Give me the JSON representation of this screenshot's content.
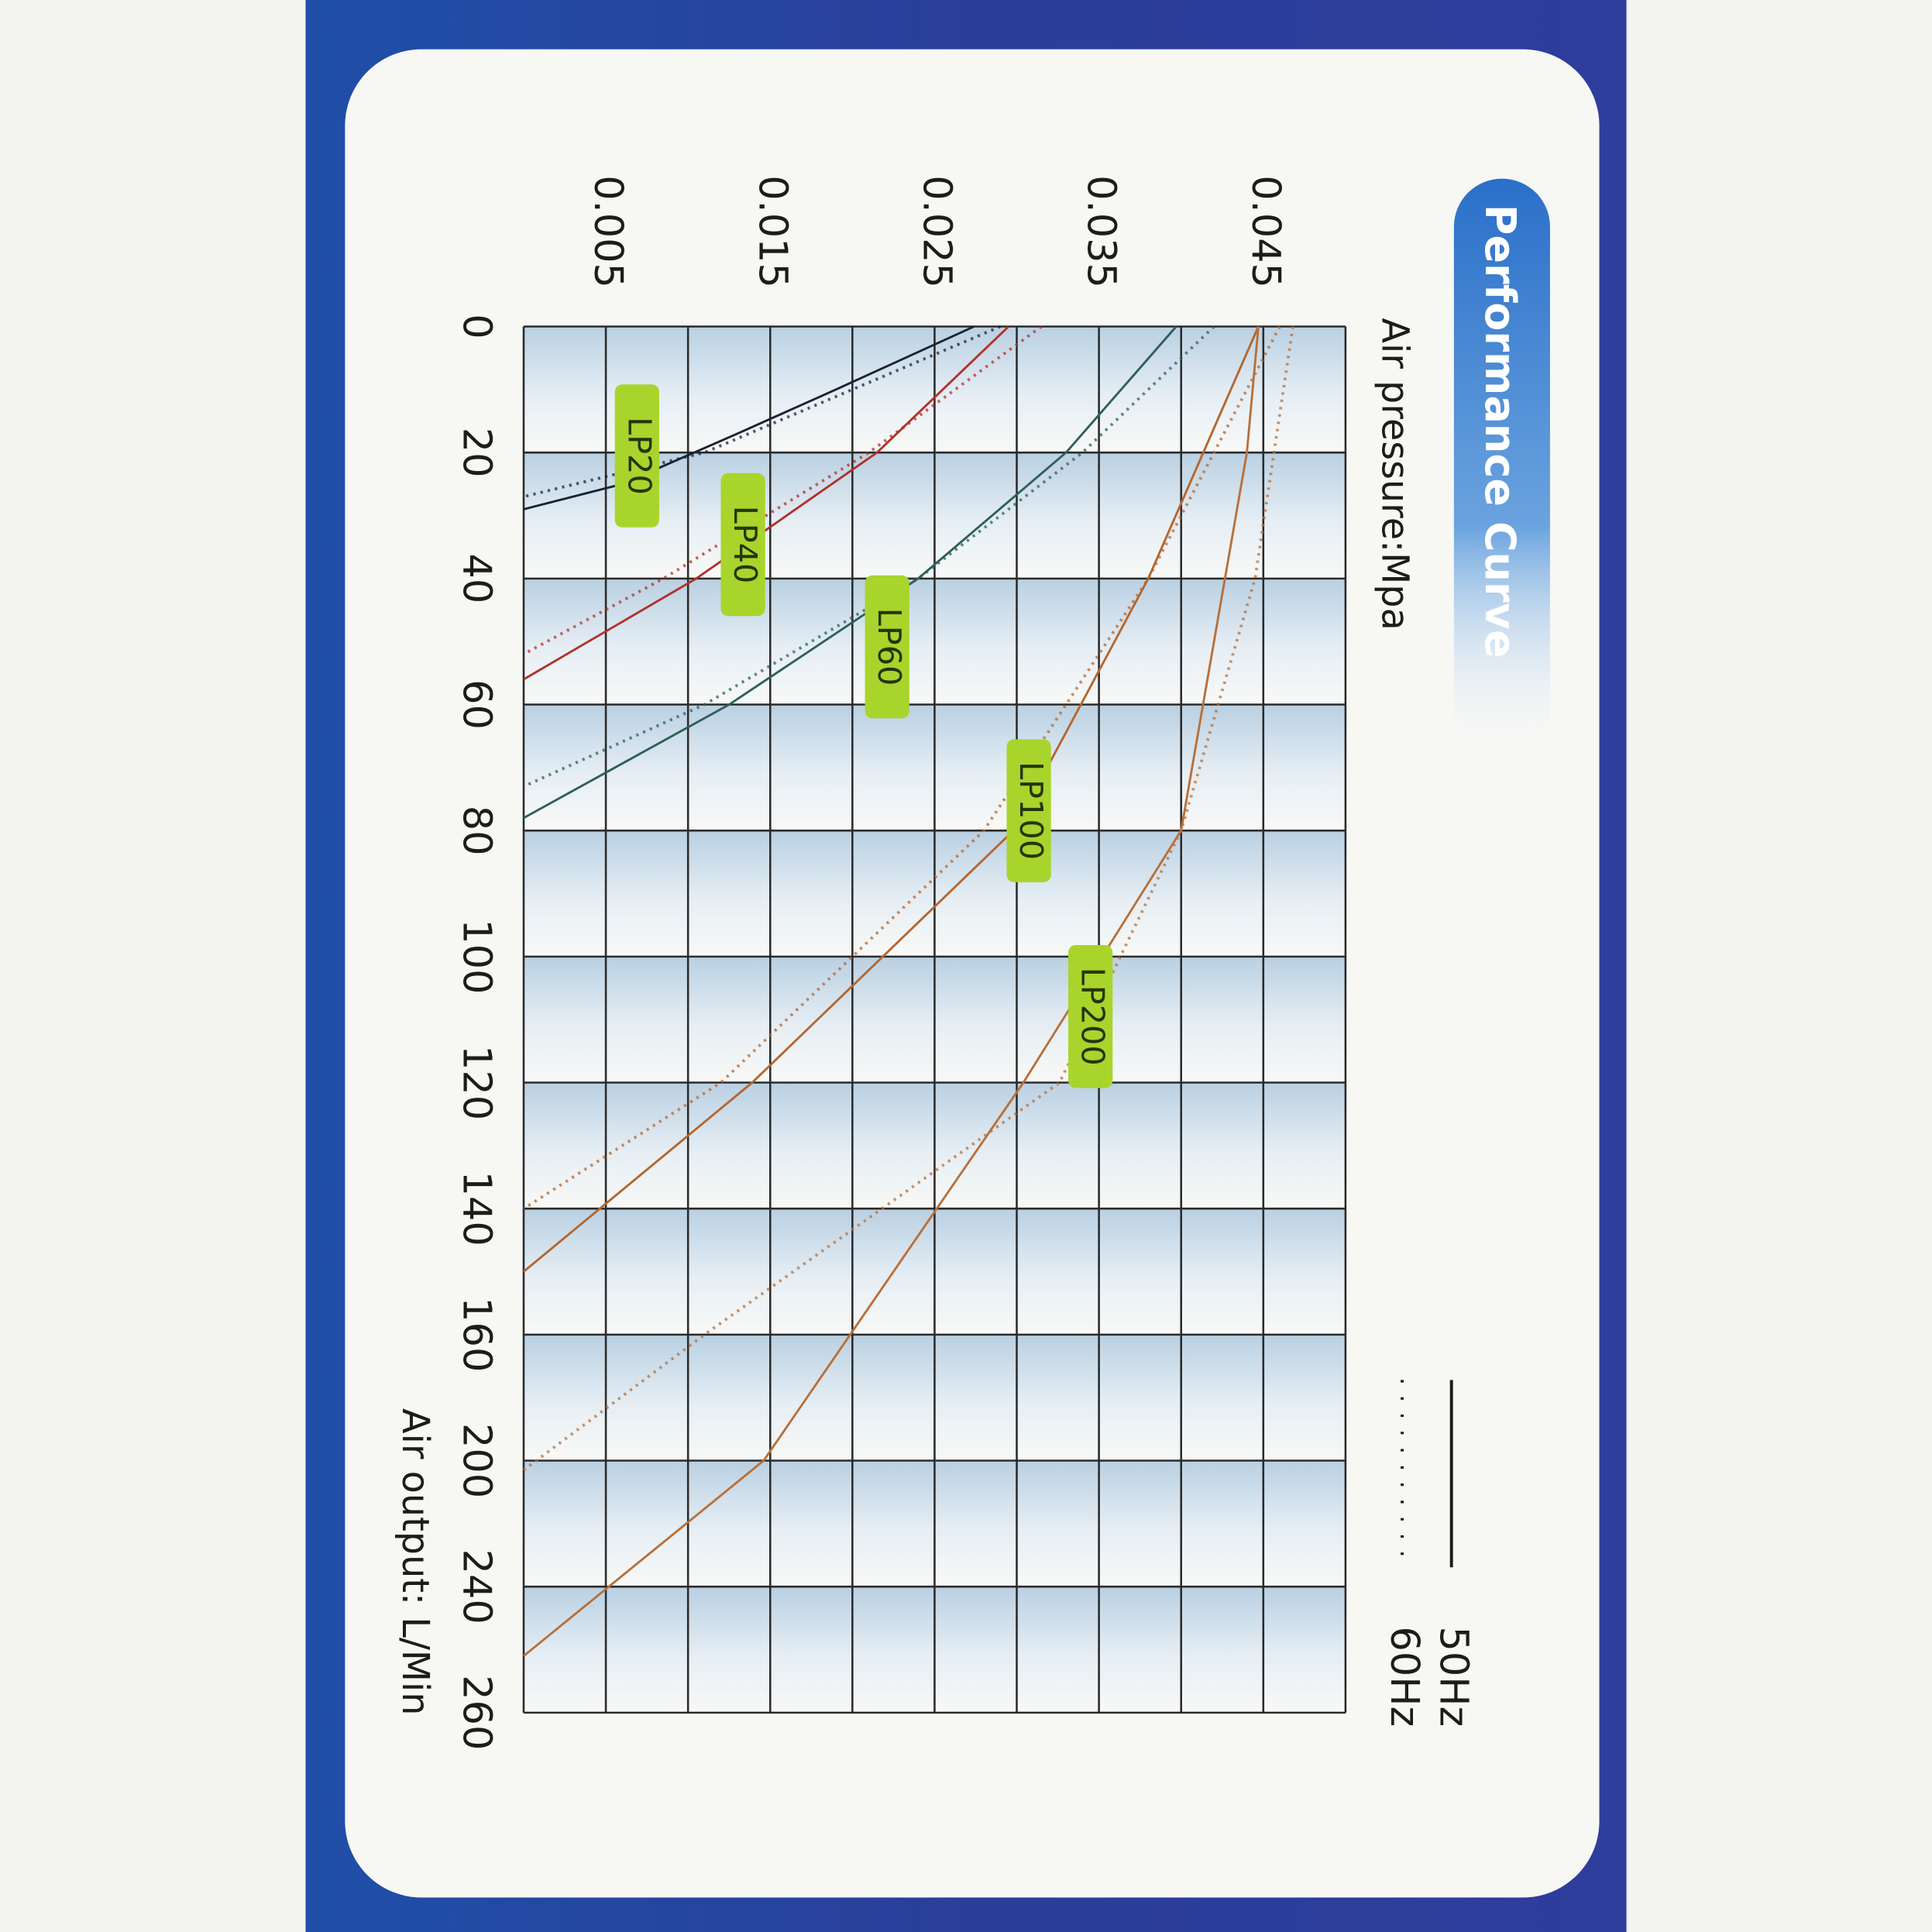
{
  "chart_data": {
    "type": "line",
    "title": "Performance Curve",
    "y_label": "Air pressure:Mpa",
    "x_label": "Air output: L/Min",
    "xlim": [
      0,
      260
    ],
    "xticks": [
      0,
      20,
      40,
      60,
      80,
      100,
      120,
      140,
      160,
      200,
      240,
      260
    ],
    "ylim": [
      0,
      0.05
    ],
    "yticks": [
      0.005,
      0.015,
      0.025,
      0.035,
      0.045
    ],
    "minor_yticks": [
      0,
      0.01,
      0.02,
      0.03,
      0.04,
      0.05
    ],
    "grid": true,
    "legend": [
      {
        "name": "50Hz",
        "dash": "solid"
      },
      {
        "name": "60Hz",
        "dash": "dotted"
      }
    ],
    "series": [
      {
        "name": "LP20",
        "color": "#1b2333",
        "curves": [
          {
            "x": [
              0,
              10,
              17,
              25,
              29
            ],
            "values": [
              0.0274,
              0.019,
              0.013,
              0.006,
              0
            ]
          },
          {
            "x": [
              0,
              10,
              20,
              27
            ],
            "values": [
              0.029,
              0.02,
              0.011,
              0
            ]
          }
        ]
      },
      {
        "name": "LP40",
        "color": "#b0322a",
        "curves": [
          {
            "x": [
              0,
              20,
              40,
              56
            ],
            "values": [
              0.0295,
              0.0215,
              0.0105,
              0
            ]
          },
          {
            "x": [
              0,
              20,
              40,
              52
            ],
            "values": [
              0.0315,
              0.021,
              0.0085,
              0
            ]
          }
        ]
      },
      {
        "name": "LP60",
        "color": "#2f5f5a",
        "curves": [
          {
            "x": [
              0,
              20,
              40,
              60,
              78
            ],
            "values": [
              0.0397,
              0.033,
              0.024,
              0.0125,
              0
            ]
          },
          {
            "x": [
              0,
              20,
              40,
              60,
              73
            ],
            "values": [
              0.042,
              0.034,
              0.024,
              0.011,
              0
            ]
          }
        ]
      },
      {
        "name": "LP100",
        "color": "#b5662d",
        "curves": [
          {
            "x": [
              0,
              40,
              80,
              120,
              150
            ],
            "values": [
              0.0447,
              0.038,
              0.0298,
              0.0139,
              0
            ]
          },
          {
            "x": [
              0,
              40,
              80,
              120,
              140
            ],
            "values": [
              0.046,
              0.038,
              0.028,
              0.012,
              0
            ]
          }
        ]
      },
      {
        "name": "LP200",
        "color": "#b8703a",
        "curves": [
          {
            "x": [
              0,
              20,
              80,
              120,
              200,
              251
            ],
            "values": [
              0.0447,
              0.044,
              0.04,
              0.0304,
              0.0146,
              0
            ]
          },
          {
            "x": [
              0,
              40,
              80,
              120,
              160,
              203
            ],
            "values": [
              0.0468,
              0.0445,
              0.04,
              0.0326,
              0.011,
              0
            ]
          }
        ]
      }
    ]
  }
}
